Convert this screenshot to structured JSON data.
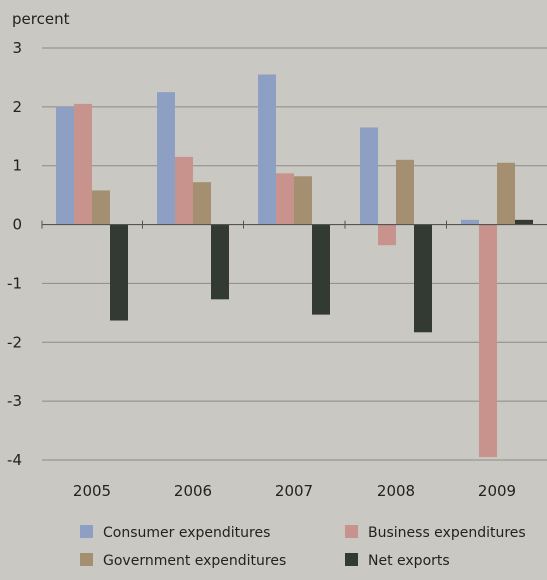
{
  "chart_data": {
    "type": "bar",
    "ylabel": "percent",
    "categories": [
      "2005",
      "2006",
      "2007",
      "2008",
      "2009"
    ],
    "ylim": [
      -4,
      3
    ],
    "yticks": [
      3,
      2,
      1,
      0,
      -1,
      -2,
      -3,
      -4
    ],
    "grid": true,
    "legend_position": "bottom",
    "series": [
      {
        "name": "Consumer expenditures",
        "color": "#8e9fc4",
        "values": [
          2.0,
          2.25,
          2.55,
          1.65,
          0.08
        ]
      },
      {
        "name": "Business expenditures",
        "color": "#c8938c",
        "values": [
          2.05,
          1.15,
          0.87,
          -0.35,
          -3.95
        ]
      },
      {
        "name": "Government expenditures",
        "color": "#a48f70",
        "values": [
          0.58,
          0.72,
          0.82,
          1.1,
          1.05
        ]
      },
      {
        "name": "Net exports",
        "color": "#333a33",
        "values": [
          -1.63,
          -1.27,
          -1.53,
          -1.83,
          0.08
        ]
      }
    ]
  }
}
